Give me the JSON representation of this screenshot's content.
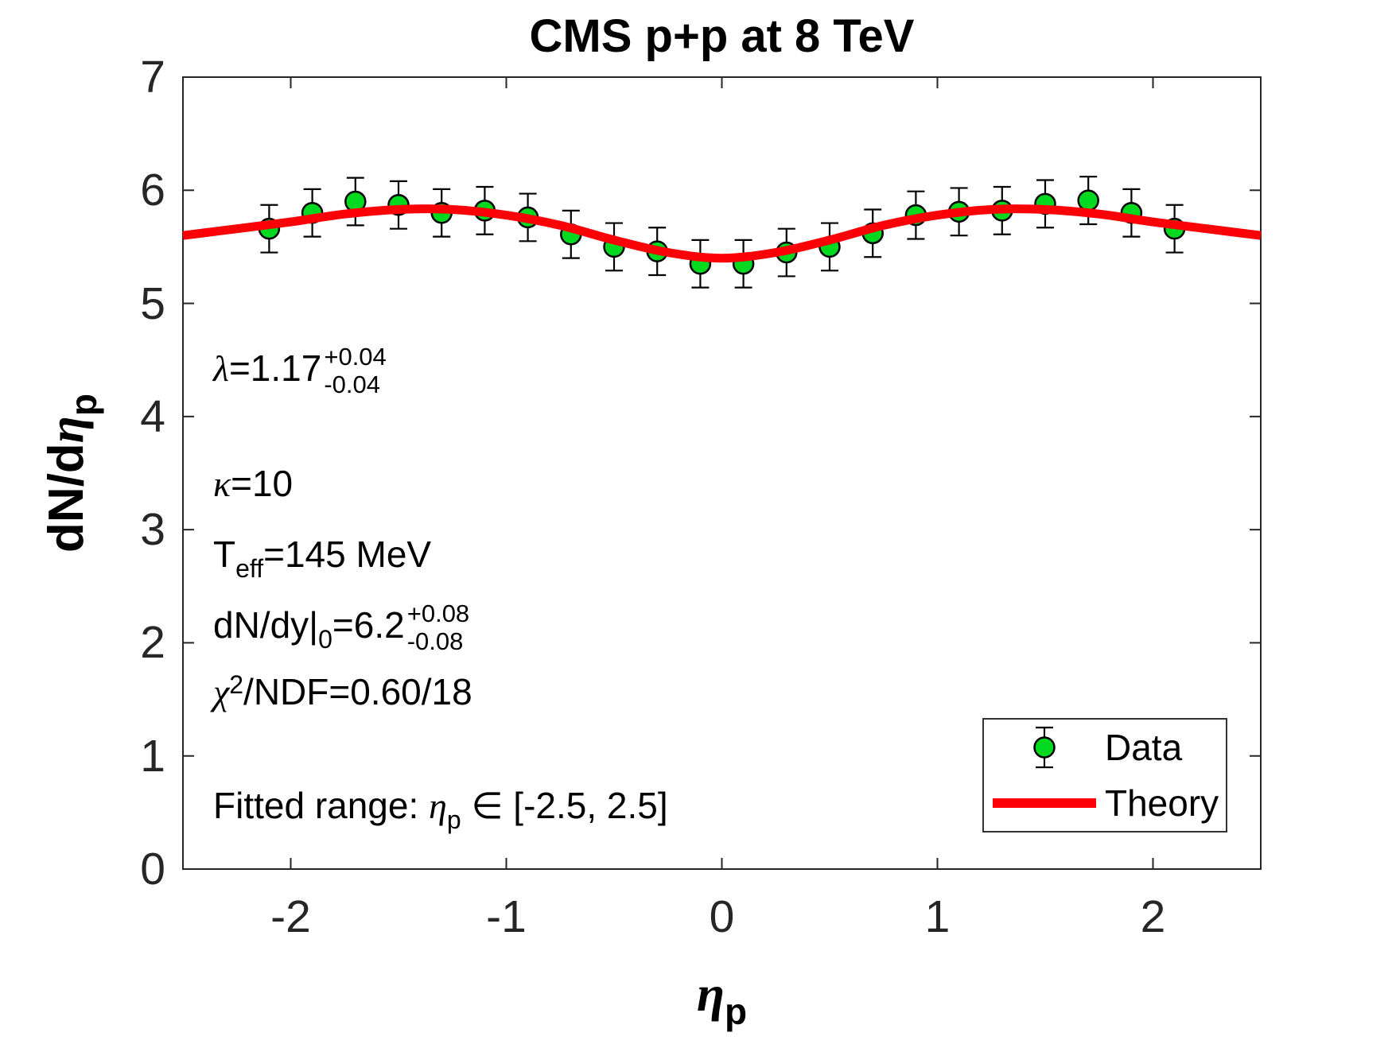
{
  "title": "CMS p+p at 8 TeV",
  "axes": {
    "xlabel": {
      "greek": "η",
      "sub": "p"
    },
    "ylabel": {
      "prefix": "dN/d",
      "greek": "η",
      "sub": "p"
    }
  },
  "annotations": {
    "lambda": {
      "symbol": "λ",
      "text": "=1.17",
      "sup": "+0.04",
      "sub": "-0.04"
    },
    "kappa": {
      "symbol": "κ",
      "text": "=10"
    },
    "teff": {
      "base": "T",
      "sub": "eff",
      "text": "=145 MeV"
    },
    "dndy": {
      "base": "dN/dy|",
      "sub0": "0",
      "text": "=6.2",
      "sup": "+0.08",
      "sub": "-0.08"
    },
    "chi2": {
      "symbol": "χ",
      "sup": "2",
      "text": "/NDF=0.60/18"
    },
    "fitted": {
      "prefix": "Fitted range: ",
      "symbol": "η",
      "sub": "p",
      "text": " ∈ [-2.5, 2.5]"
    }
  },
  "legend": {
    "data_label": "Data",
    "theory_label": "Theory"
  },
  "colors": {
    "data_fill": "#00d91f",
    "data_edge": "#000000",
    "theory": "#fb0007",
    "axis": "#262626",
    "error_bar": "#000000"
  },
  "chart_data": {
    "type": "scatter",
    "title": "CMS p+p at 8 TeV",
    "xlabel": "eta_p",
    "ylabel": "dN/d eta_p",
    "xlim": [
      -2.5,
      2.5
    ],
    "ylim": [
      0,
      7
    ],
    "x_ticks": [
      -2,
      -1,
      0,
      1,
      2
    ],
    "y_ticks": [
      0,
      1,
      2,
      3,
      4,
      5,
      6,
      7
    ],
    "grid": false,
    "legend_position": "lower right",
    "series": [
      {
        "name": "Data",
        "type": "scatter",
        "marker": "circle",
        "x": [
          -2.1,
          -1.9,
          -1.7,
          -1.5,
          -1.3,
          -1.1,
          -0.9,
          -0.7,
          -0.5,
          -0.3,
          -0.1,
          0.1,
          0.3,
          0.5,
          0.7,
          0.9,
          1.1,
          1.3,
          1.5,
          1.7,
          1.9,
          2.1
        ],
        "y": [
          5.66,
          5.8,
          5.9,
          5.87,
          5.8,
          5.82,
          5.76,
          5.61,
          5.5,
          5.46,
          5.35,
          5.35,
          5.45,
          5.5,
          5.62,
          5.78,
          5.81,
          5.82,
          5.88,
          5.91,
          5.8,
          5.66
        ],
        "yerr": 0.21
      },
      {
        "name": "Theory",
        "type": "line",
        "x": [
          -2.5,
          -2.25,
          -2.0,
          -1.75,
          -1.5,
          -1.25,
          -1.0,
          -0.75,
          -0.5,
          -0.25,
          0,
          0.25,
          0.5,
          0.75,
          1.0,
          1.25,
          1.5,
          1.75,
          2.0,
          2.25,
          2.5
        ],
        "y": [
          5.6,
          5.66,
          5.72,
          5.79,
          5.83,
          5.83,
          5.78,
          5.69,
          5.56,
          5.45,
          5.4,
          5.45,
          5.56,
          5.69,
          5.78,
          5.83,
          5.83,
          5.79,
          5.72,
          5.66,
          5.6
        ]
      }
    ]
  }
}
